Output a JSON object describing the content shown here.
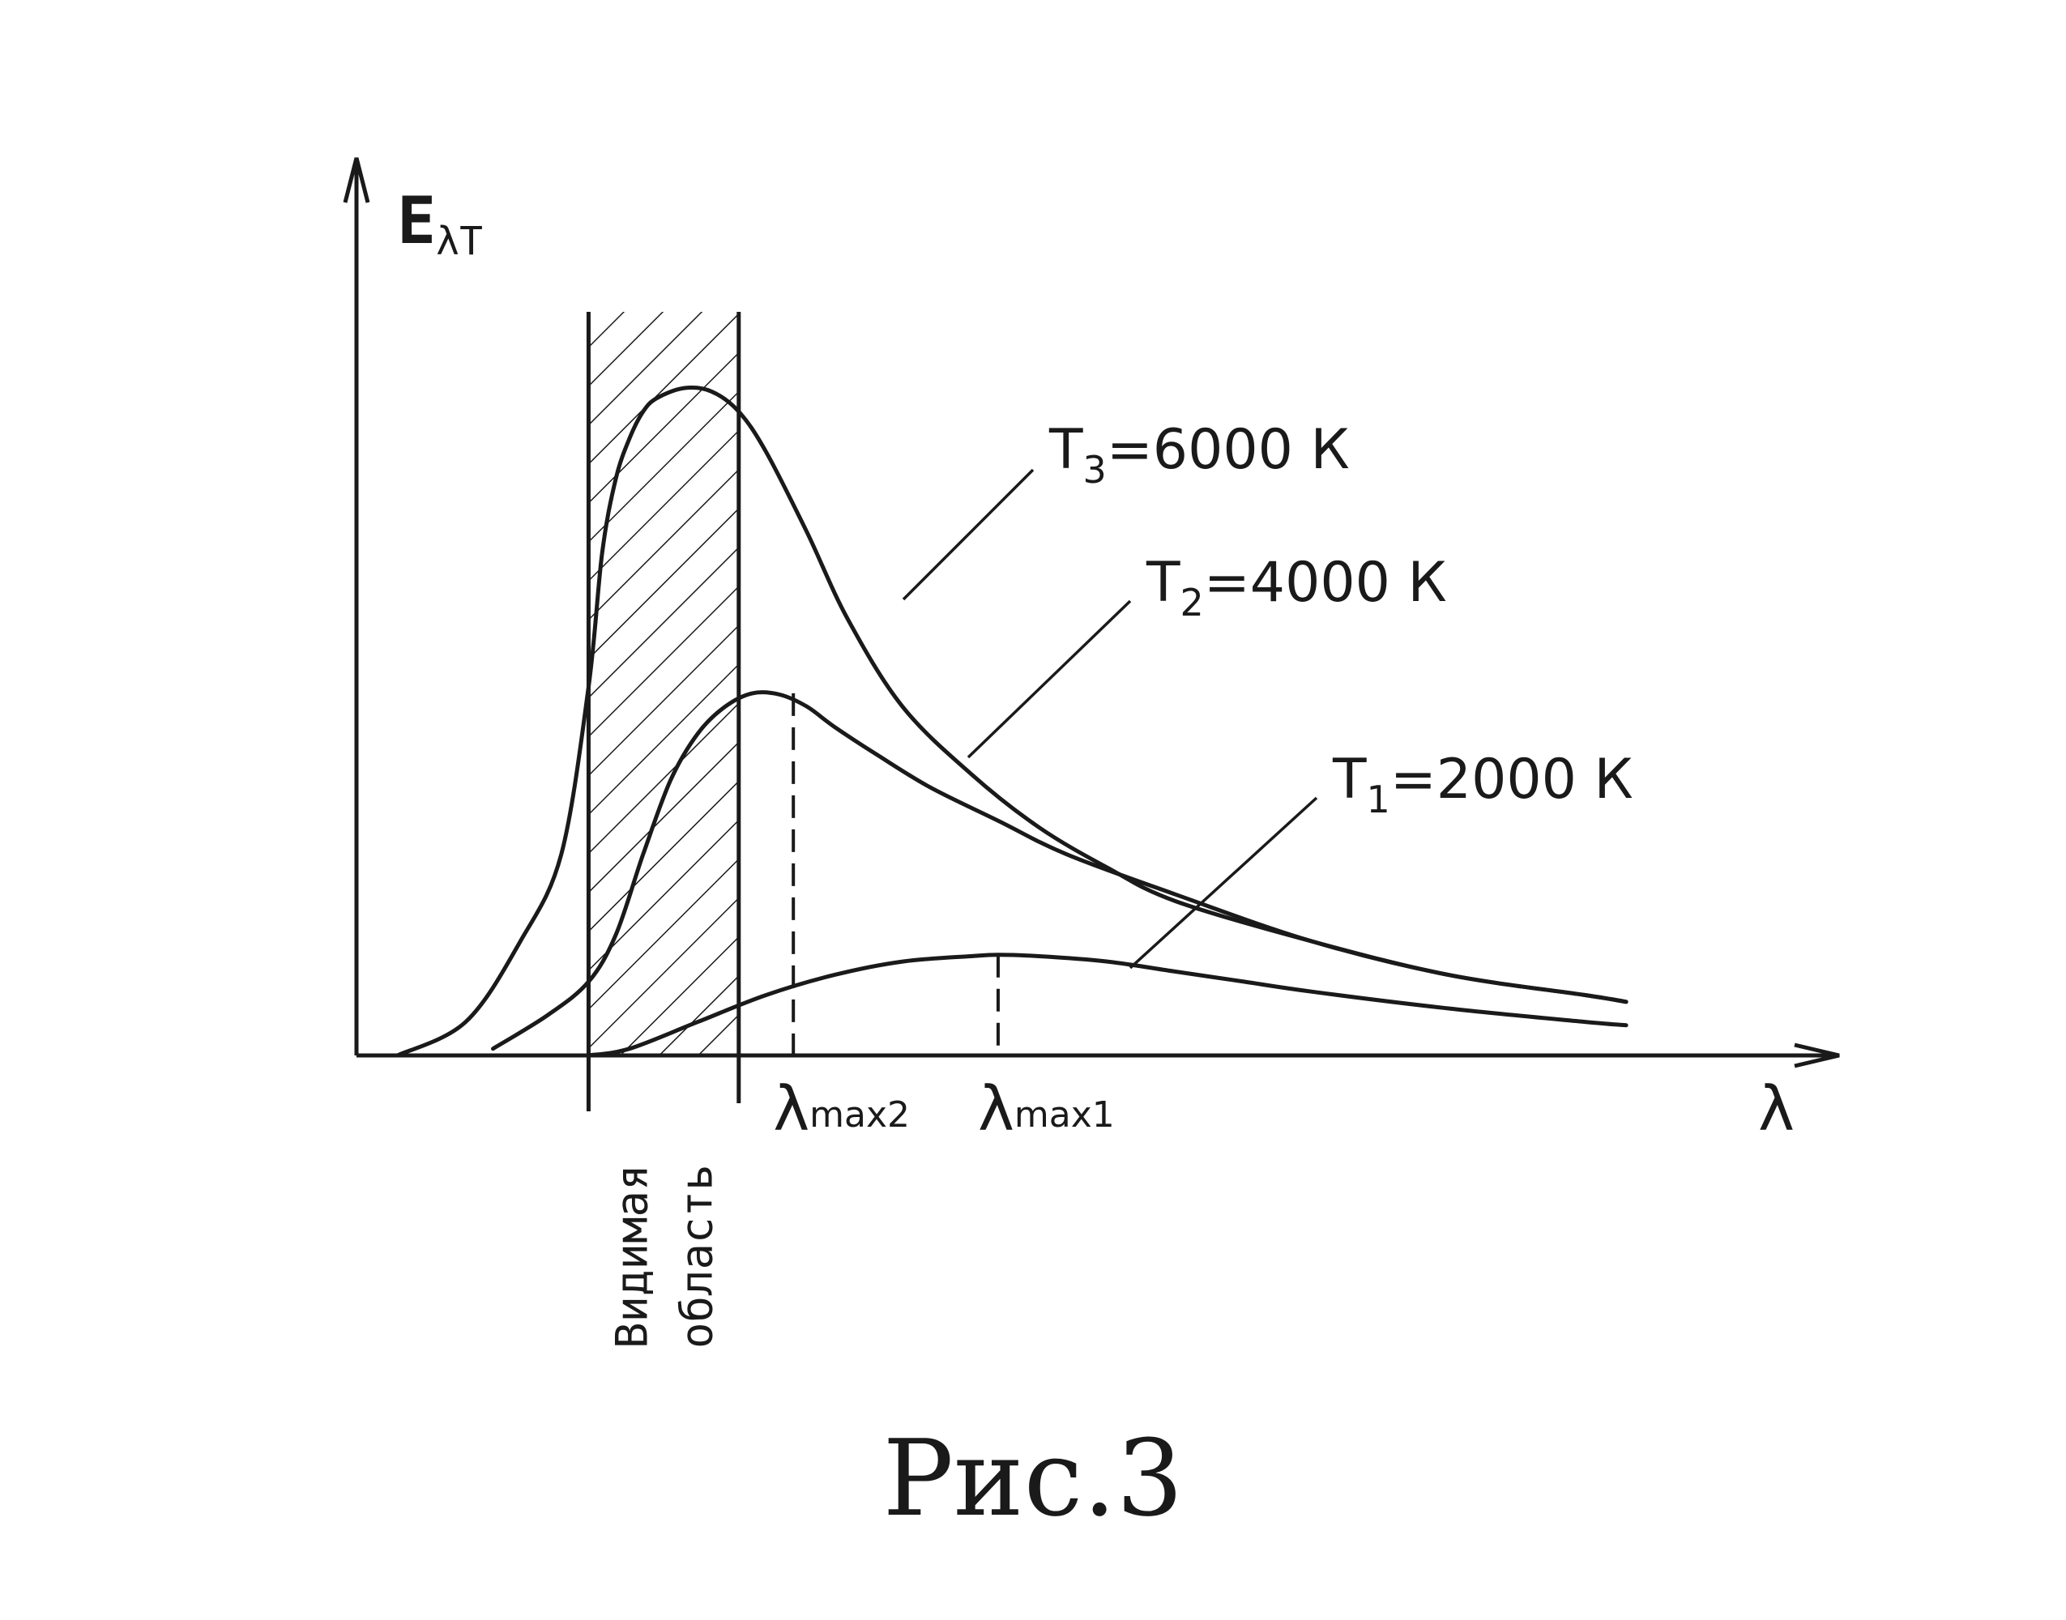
{
  "figure": {
    "caption": "Рис.3"
  },
  "chart_data": {
    "type": "line",
    "xlabel": "λ",
    "ylabel": {
      "main": "E",
      "sub": "λT"
    },
    "xlim": [
      0,
      1.0
    ],
    "ylim": [
      0,
      1.0
    ],
    "grid": false,
    "visible_band": {
      "range": [
        0.17,
        0.28
      ],
      "label_lines": [
        "Видимая",
        "область"
      ]
    },
    "series": [
      {
        "name": "T3=6000 K",
        "label_main": "T",
        "label_sub": "3",
        "label_rest": "=6000 К",
        "x": [
          0.03,
          0.08,
          0.12,
          0.15,
          0.17,
          0.18,
          0.19,
          0.2,
          0.21,
          0.22,
          0.24,
          0.26,
          0.28,
          0.3,
          0.33,
          0.36,
          0.4,
          0.45,
          0.5,
          0.55,
          0.6,
          0.7,
          0.8,
          0.9,
          0.93
        ],
        "y": [
          0.0,
          0.05,
          0.17,
          0.3,
          0.55,
          0.75,
          0.86,
          0.92,
          0.96,
          0.98,
          0.995,
          0.99,
          0.96,
          0.9,
          0.78,
          0.65,
          0.52,
          0.42,
          0.34,
          0.28,
          0.23,
          0.17,
          0.12,
          0.09,
          0.08
        ]
      },
      {
        "name": "T2=4000 K",
        "label_main": "T",
        "label_sub": "2",
        "label_rest": "=4000 К",
        "x": [
          0.1,
          0.14,
          0.17,
          0.19,
          0.21,
          0.23,
          0.25,
          0.27,
          0.29,
          0.31,
          0.33,
          0.35,
          0.38,
          0.42,
          0.47,
          0.52,
          0.6,
          0.7,
          0.8,
          0.9,
          0.93
        ],
        "y": [
          0.01,
          0.06,
          0.11,
          0.18,
          0.3,
          0.41,
          0.48,
          0.52,
          0.54,
          0.538,
          0.52,
          0.49,
          0.45,
          0.4,
          0.35,
          0.3,
          0.24,
          0.17,
          0.12,
          0.09,
          0.08
        ]
      },
      {
        "name": "T1=2000 K",
        "label_main": "T",
        "label_sub": "1",
        "label_rest": "=2000 К",
        "x": [
          0.17,
          0.2,
          0.25,
          0.3,
          0.35,
          0.4,
          0.45,
          0.47,
          0.5,
          0.55,
          0.6,
          0.65,
          0.7,
          0.8,
          0.9,
          0.93
        ],
        "y": [
          0.0,
          0.01,
          0.05,
          0.09,
          0.12,
          0.14,
          0.148,
          0.15,
          0.148,
          0.14,
          0.125,
          0.11,
          0.095,
          0.07,
          0.05,
          0.045
        ]
      }
    ],
    "peaks": [
      {
        "label_main": "λ",
        "label_sub": "max2",
        "x": 0.32,
        "y": 0.54
      },
      {
        "label_main": "λ",
        "label_sub": "max1",
        "x": 0.47,
        "y": 0.15
      }
    ]
  }
}
